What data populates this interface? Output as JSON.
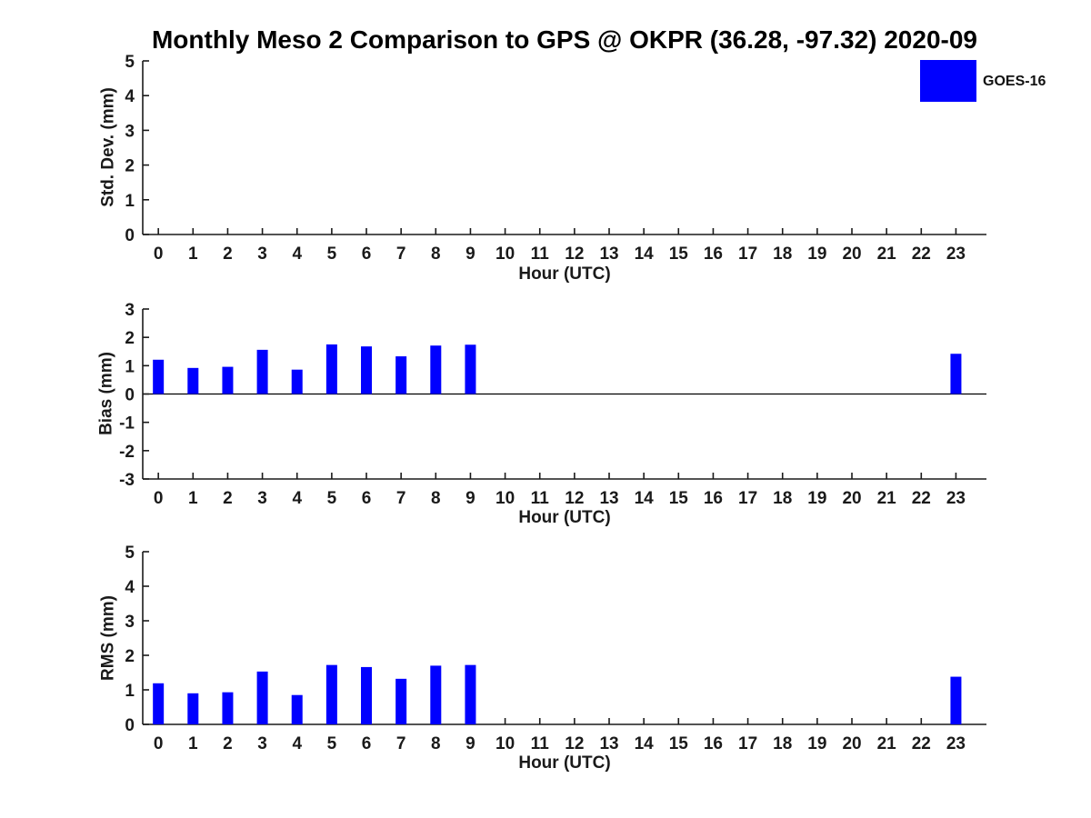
{
  "title": "Monthly Meso 2 Comparison to GPS @ OKPR (36.28, -97.32) 2020-09",
  "chart_data": [
    {
      "type": "bar",
      "title": "",
      "ylabel": "Std. Dev. (mm)",
      "xlabel": "Hour (UTC)",
      "x": [
        "0",
        "1",
        "2",
        "3",
        "4",
        "5",
        "6",
        "7",
        "8",
        "9",
        "10",
        "11",
        "12",
        "13",
        "14",
        "15",
        "16",
        "17",
        "18",
        "19",
        "20",
        "21",
        "22",
        "23"
      ],
      "ylim": [
        0,
        5
      ],
      "yticks": [
        0,
        1,
        2,
        3,
        4,
        5
      ],
      "grid": "off",
      "legend_position": "upper-right",
      "series": [
        {
          "name": "GOES-16",
          "color": "#0000ff",
          "values": [
            0,
            0,
            0,
            0,
            0,
            0,
            0,
            0,
            0,
            0,
            null,
            null,
            null,
            null,
            null,
            null,
            null,
            null,
            null,
            null,
            null,
            null,
            null,
            0
          ]
        }
      ]
    },
    {
      "type": "bar",
      "title": "",
      "ylabel": "Bias (mm)",
      "xlabel": "Hour (UTC)",
      "x": [
        "0",
        "1",
        "2",
        "3",
        "4",
        "5",
        "6",
        "7",
        "8",
        "9",
        "10",
        "11",
        "12",
        "13",
        "14",
        "15",
        "16",
        "17",
        "18",
        "19",
        "20",
        "21",
        "22",
        "23"
      ],
      "ylim": [
        -3,
        3
      ],
      "yticks": [
        -3,
        -2,
        -1,
        0,
        1,
        2,
        3
      ],
      "grid": "off",
      "series": [
        {
          "name": "GOES-16",
          "color": "#0000ff",
          "values": [
            1.21,
            0.92,
            0.96,
            1.56,
            0.86,
            1.75,
            1.68,
            1.33,
            1.71,
            1.74,
            null,
            null,
            null,
            null,
            null,
            null,
            null,
            null,
            null,
            null,
            null,
            null,
            null,
            1.42
          ]
        }
      ]
    },
    {
      "type": "bar",
      "title": "",
      "ylabel": "RMS (mm)",
      "xlabel": "Hour (UTC)",
      "x": [
        "0",
        "1",
        "2",
        "3",
        "4",
        "5",
        "6",
        "7",
        "8",
        "9",
        "10",
        "11",
        "12",
        "13",
        "14",
        "15",
        "16",
        "17",
        "18",
        "19",
        "20",
        "21",
        "22",
        "23"
      ],
      "ylim": [
        0,
        5
      ],
      "yticks": [
        0,
        1,
        2,
        3,
        4,
        5
      ],
      "grid": "off",
      "series": [
        {
          "name": "GOES-16",
          "color": "#0000ff",
          "values": [
            1.19,
            0.9,
            0.93,
            1.53,
            0.85,
            1.72,
            1.66,
            1.32,
            1.7,
            1.72,
            null,
            null,
            null,
            null,
            null,
            null,
            null,
            null,
            null,
            null,
            null,
            null,
            null,
            1.38
          ]
        }
      ]
    }
  ]
}
